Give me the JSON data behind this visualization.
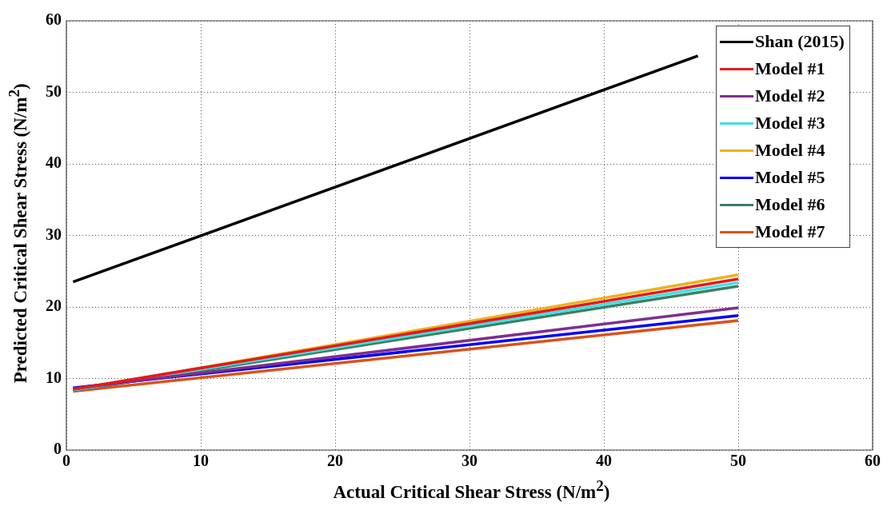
{
  "chart_data": {
    "type": "line",
    "xlabel": "Actual Critical Shear Stress (N/m$^{2}$)",
    "ylabel": "Predicted Critical Shear Stress (N/m$^{2}$)",
    "xlim": [
      0,
      60
    ],
    "xticks": [
      0,
      10,
      20,
      30,
      40,
      50,
      60
    ],
    "ylim": [
      0,
      60
    ],
    "yticks": [
      0,
      10,
      20,
      30,
      40,
      50,
      60
    ],
    "grid": true,
    "legend": "top right",
    "marker": "none",
    "line_style": "solid",
    "series": [
      {
        "name": "Shan (2015)",
        "color": "#000000",
        "x": [
          0.5,
          47
        ],
        "values": [
          23.5,
          55.1
        ]
      },
      {
        "name": "Model #1",
        "color": "#e3191c",
        "x": [
          0.5,
          50
        ],
        "values": [
          8.5,
          23.9
        ]
      },
      {
        "name": "Model #2",
        "color": "#7e2f8e",
        "x": [
          0.5,
          50
        ],
        "values": [
          8.6,
          19.9
        ]
      },
      {
        "name": "Model #3",
        "color": "#3fe0e8",
        "x": [
          0.5,
          50
        ],
        "values": [
          8.4,
          23.4
        ]
      },
      {
        "name": "Model #4",
        "color": "#edb120",
        "x": [
          0.5,
          50
        ],
        "values": [
          8.4,
          24.5
        ]
      },
      {
        "name": "Model #5",
        "color": "#0000ff",
        "x": [
          0.5,
          50
        ],
        "values": [
          8.7,
          18.8
        ]
      },
      {
        "name": "Model #6",
        "color": "#3d7f63",
        "x": [
          0.5,
          50
        ],
        "values": [
          8.3,
          22.9
        ]
      },
      {
        "name": "Model #7",
        "color": "#d95319",
        "x": [
          0.5,
          50
        ],
        "values": [
          8.2,
          18.1
        ]
      }
    ]
  }
}
